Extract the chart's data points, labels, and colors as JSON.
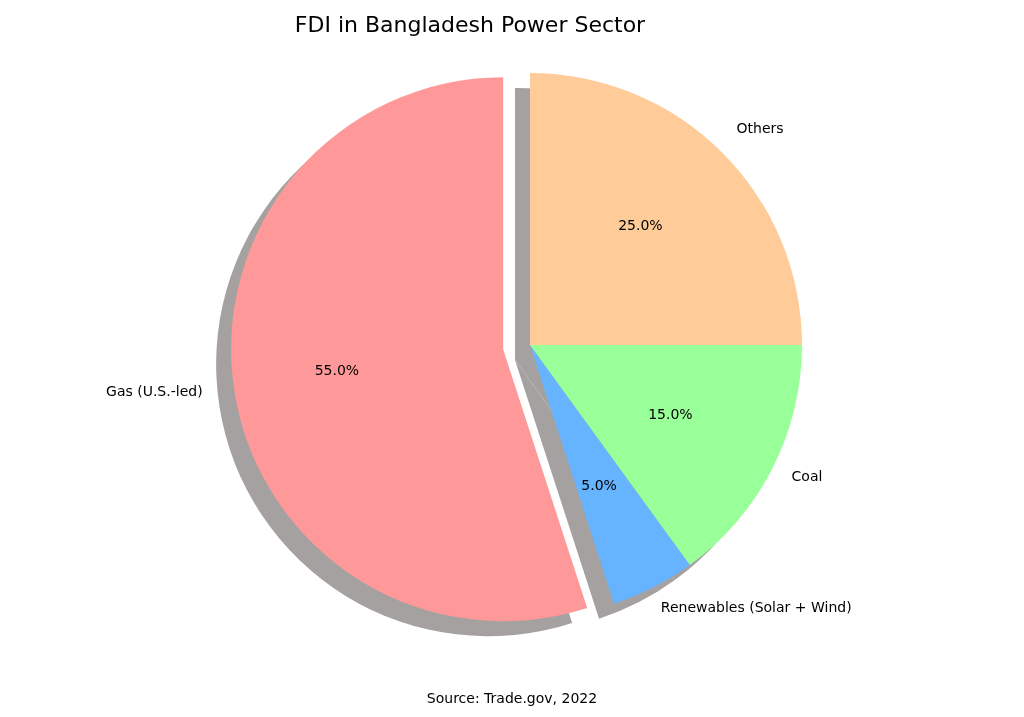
{
  "chart_data": {
    "type": "pie",
    "title": "FDI in Bangladesh Power Sector",
    "categories": [
      "Gas (U.S.-led)",
      "Renewables (Solar + Wind)",
      "Coal",
      "Others"
    ],
    "values": [
      55,
      5,
      15,
      25
    ],
    "colors": [
      "#ff9999",
      "#66b3ff",
      "#99ff99",
      "#ffcc99"
    ],
    "value_labels": [
      "55.0%",
      "5.0%",
      "15.0%",
      "25.0%"
    ],
    "annotations": [
      "Source: Trade.gov, 2022"
    ]
  }
}
